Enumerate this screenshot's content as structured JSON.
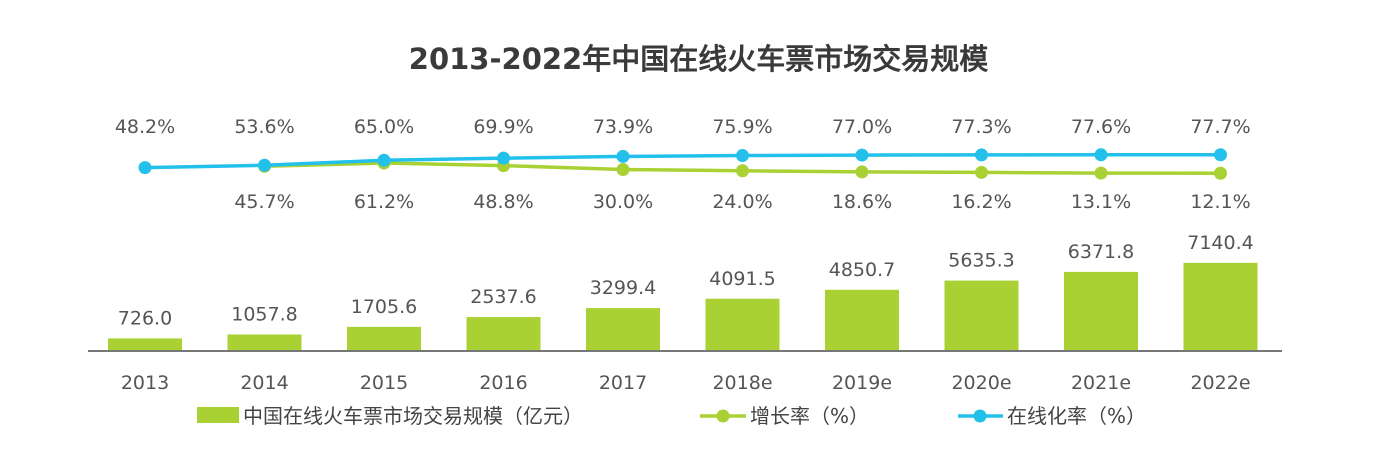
{
  "colors": {
    "bar": "#a9d134",
    "growth": "#a9d134",
    "online": "#22c0ea",
    "axis": "#777777"
  },
  "chart_data": {
    "type": "bar",
    "title": "2013-2022年中国在线火车票市场交易规模",
    "categories": [
      "2013",
      "2014",
      "2015",
      "2016",
      "2017",
      "2018e",
      "2019e",
      "2020e",
      "2021e",
      "2022e"
    ],
    "series": [
      {
        "name": "中国在线火车票市场交易规模（亿元）",
        "type": "bar",
        "values": [
          726.0,
          1057.8,
          1705.6,
          2537.6,
          3299.4,
          4091.5,
          4850.7,
          5635.3,
          6371.8,
          7140.4
        ],
        "labels": [
          "726.0",
          "1057.8",
          "1705.6",
          "2537.6",
          "3299.4",
          "4091.5",
          "4850.7",
          "5635.3",
          "6371.8",
          "7140.4"
        ]
      },
      {
        "name": "增长率（%）",
        "type": "line",
        "values": [
          null,
          45.7,
          61.2,
          48.8,
          30.0,
          24.0,
          18.6,
          16.2,
          13.1,
          12.1
        ],
        "labels": [
          null,
          "45.7%",
          "61.2%",
          "48.8%",
          "30.0%",
          "24.0%",
          "18.6%",
          "16.2%",
          "13.1%",
          "12.1%"
        ]
      },
      {
        "name": "在线化率（%）",
        "type": "line",
        "values": [
          48.2,
          53.6,
          65.0,
          69.9,
          73.9,
          75.9,
          77.0,
          77.3,
          77.6,
          77.7
        ],
        "labels": [
          "48.2%",
          "53.6%",
          "65.0%",
          "69.9%",
          "73.9%",
          "75.9%",
          "77.0%",
          "77.3%",
          "77.6%",
          "77.7%"
        ]
      }
    ],
    "legend_position": "bottom",
    "grid": false
  }
}
